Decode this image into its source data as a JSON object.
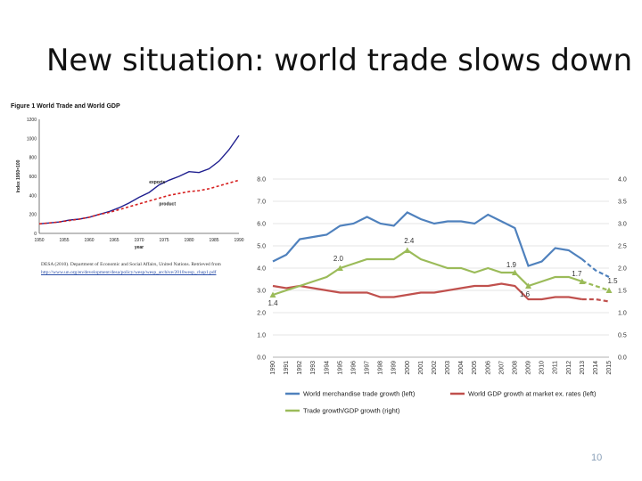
{
  "slide": {
    "title": "New situation: world trade slows down",
    "page_number": "10"
  },
  "left_figure": {
    "title": "Figure 1  World Trade and World GDP",
    "source_line1": "DESA (2010). Department of Economic and Social Affairs, United Nations. Retrieved from",
    "source_line2": "http://www.un.org/en/development/desa/policy/wesp/wesp_archive/2010wesp_chap1.pdf"
  },
  "chart_data": [
    {
      "type": "line",
      "title": "Figure 1  World Trade and World GDP",
      "xlabel": "year",
      "ylabel": "Index 1950=100",
      "x": [
        1950,
        1952,
        1954,
        1956,
        1958,
        1960,
        1962,
        1964,
        1966,
        1968,
        1970,
        1972,
        1974,
        1976,
        1978,
        1980,
        1982,
        1984,
        1986,
        1988,
        1990
      ],
      "xlim": [
        1950,
        1990
      ],
      "ylim": [
        0,
        1200
      ],
      "x_ticks": [
        "1950",
        "1955",
        "1960",
        "1965",
        "1970",
        "1975",
        "1980",
        "1985",
        "1990"
      ],
      "y_ticks": [
        "0",
        "200",
        "400",
        "600",
        "800",
        "1000",
        "1200"
      ],
      "series": [
        {
          "name": "exports",
          "color": "#1f1f8f",
          "style": "solid",
          "values": [
            100,
            110,
            120,
            140,
            150,
            170,
            200,
            230,
            270,
            320,
            380,
            430,
            510,
            560,
            600,
            650,
            640,
            680,
            760,
            880,
            1030
          ]
        },
        {
          "name": "product",
          "color": "#d62020",
          "style": "dashed",
          "values": [
            100,
            110,
            120,
            135,
            150,
            170,
            200,
            220,
            250,
            280,
            310,
            340,
            370,
            400,
            420,
            440,
            450,
            470,
            500,
            530,
            560
          ]
        }
      ]
    },
    {
      "type": "line",
      "categories": [
        "1990",
        "1991",
        "1992",
        "1993",
        "1994",
        "1995",
        "1996",
        "1997",
        "1998",
        "1999",
        "2000",
        "2001",
        "2002",
        "2003",
        "2004",
        "2005",
        "2006",
        "2007",
        "2008",
        "2009",
        "2010",
        "2011",
        "2012",
        "2013",
        "2014",
        "2015"
      ],
      "ylim_left": [
        0,
        8
      ],
      "ylim_right": [
        0,
        4
      ],
      "left_ticks": [
        "0.0",
        "1.0",
        "2.0",
        "3.0",
        "4.0",
        "5.0",
        "6.0",
        "7.0",
        "8.0"
      ],
      "right_ticks": [
        "0.0",
        "0.5",
        "1.0",
        "1.5",
        "2.0",
        "2.5",
        "3.0",
        "3.5",
        "4.0"
      ],
      "grid": true,
      "legend_position": "bottom",
      "series": [
        {
          "name": "World merchandise trade growth (left)",
          "axis": "left",
          "color": "#4f81bd",
          "values": [
            4.3,
            4.6,
            5.3,
            5.4,
            5.5,
            5.9,
            6.0,
            6.3,
            6.0,
            5.9,
            6.5,
            6.2,
            6.0,
            6.1,
            6.1,
            6.0,
            6.4,
            6.1,
            5.8,
            4.1,
            4.3,
            4.9,
            4.8,
            4.4,
            3.9,
            3.6
          ],
          "projected_from": "2013"
        },
        {
          "name": "World GDP growth at market ex. rates (left)",
          "axis": "left",
          "color": "#c0504d",
          "values": [
            3.2,
            3.1,
            3.2,
            3.1,
            3.0,
            2.9,
            2.9,
            2.9,
            2.7,
            2.7,
            2.8,
            2.9,
            2.9,
            3.0,
            3.1,
            3.2,
            3.2,
            3.3,
            3.2,
            2.6,
            2.6,
            2.7,
            2.7,
            2.6,
            2.6,
            2.5
          ],
          "projected_from": "2013"
        },
        {
          "name": "Trade growth/GDP growth (right)",
          "axis": "right",
          "color": "#9bbb59",
          "values": [
            1.4,
            1.5,
            1.6,
            1.7,
            1.8,
            2.0,
            2.1,
            2.2,
            2.2,
            2.2,
            2.4,
            2.2,
            2.1,
            2.0,
            2.0,
            1.9,
            2.0,
            1.9,
            1.9,
            1.6,
            1.7,
            1.8,
            1.8,
            1.7,
            1.6,
            1.5
          ],
          "projected_from": "2013"
        }
      ],
      "annotations": [
        {
          "index": 0,
          "value": 1.4,
          "label": "1.4"
        },
        {
          "index": 5,
          "value": 2.0,
          "label": "2.0"
        },
        {
          "index": 10,
          "value": 2.4,
          "label": "2.4"
        },
        {
          "index": 18,
          "value": 1.9,
          "label": "1.9"
        },
        {
          "index": 19,
          "value": 1.6,
          "label": "1.6"
        },
        {
          "index": 23,
          "value": 1.7,
          "label": "1.7"
        },
        {
          "index": 25,
          "value": 1.5,
          "label": "1.5"
        }
      ]
    }
  ]
}
